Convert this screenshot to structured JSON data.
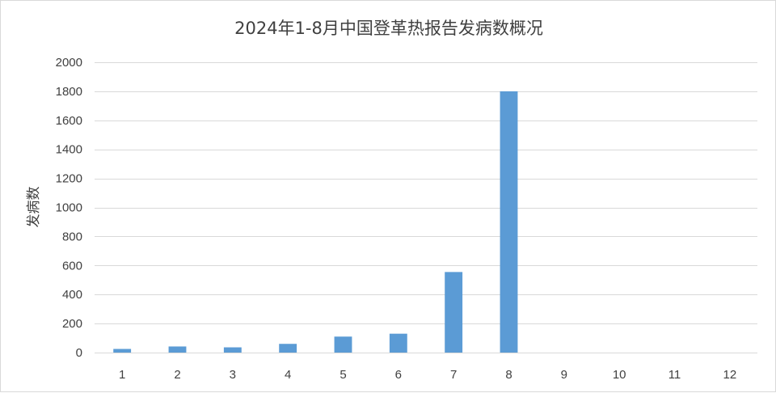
{
  "chart_data": {
    "type": "bar",
    "title": "2024年1-8月中国登革热报告发病数概况",
    "xlabel": "",
    "ylabel": "发病数",
    "categories": [
      "1",
      "2",
      "3",
      "4",
      "5",
      "6",
      "7",
      "8",
      "9",
      "10",
      "11",
      "12"
    ],
    "values": [
      25,
      42,
      36,
      60,
      110,
      130,
      555,
      1800,
      0,
      0,
      0,
      0
    ],
    "ylim": [
      0,
      2000
    ],
    "yticks": [
      0,
      200,
      400,
      600,
      800,
      1000,
      1200,
      1400,
      1600,
      1800,
      2000
    ],
    "grid": true,
    "legend": "none",
    "bar_color": "#5b9bd5"
  }
}
